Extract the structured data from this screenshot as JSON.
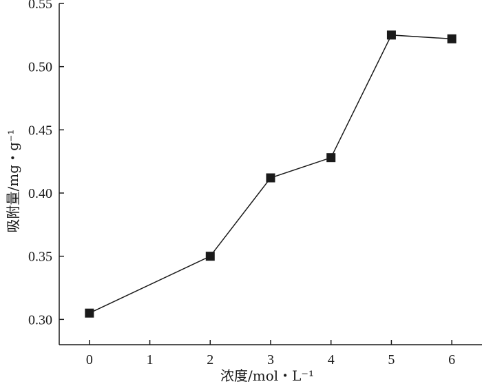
{
  "chart_data": {
    "type": "line",
    "xlabel": "浓度/mol・L⁻¹",
    "ylabel": "吸附量/mg・g⁻¹",
    "xlim": [
      -0.5,
      6.5
    ],
    "ylim": [
      0.28,
      0.55
    ],
    "x_ticks": [
      "0",
      "1",
      "2",
      "3",
      "4",
      "5",
      "6"
    ],
    "y_ticks": [
      "0.30",
      "0.35",
      "0.40",
      "0.45",
      "0.50",
      "0.55"
    ],
    "series": [
      {
        "marker": "square",
        "color": "#1a1a1a",
        "x": [
          0,
          2,
          3,
          4,
          5,
          6
        ],
        "y": [
          0.305,
          0.35,
          0.412,
          0.428,
          0.525,
          0.522
        ]
      }
    ],
    "grid": false,
    "legend": "none"
  }
}
